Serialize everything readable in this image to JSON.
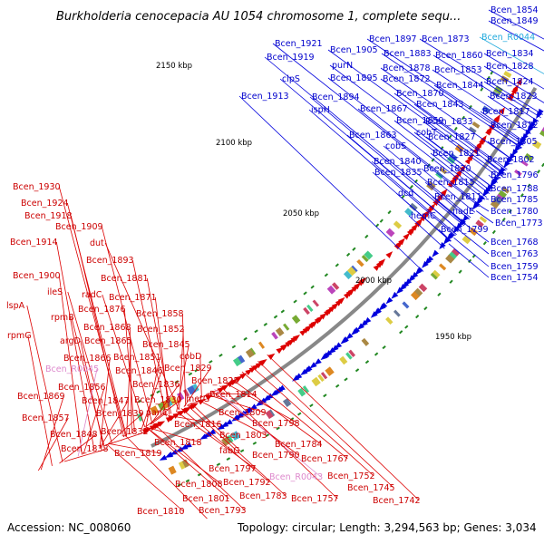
{
  "title": "Burkholderia cenocepacia AU 1054 chromosome 1, complete sequ...",
  "footer": {
    "accession": "Accession: NC_008060",
    "topology": "Topology: circular; Length: 3,294,563 bp; Genes: 3,034"
  },
  "colors": {
    "forward": "#0000dd",
    "reverse": "#dd0000",
    "rna": "#22aadd",
    "pseudo": "#dd88cc",
    "backbone": "#888888",
    "dot": "#228822"
  },
  "ticks": [
    {
      "label": "2150 kbp"
    },
    {
      "label": "2100 kbp"
    },
    {
      "label": "2050 kbp"
    },
    {
      "label": "2000 kbp"
    },
    {
      "label": "1950 kbp"
    }
  ],
  "blue_labels": [
    {
      "text": "Bcen_1854",
      "type": "cds"
    },
    {
      "text": "Bcen_1849",
      "type": "cds"
    },
    {
      "text": "Bcen_R0044",
      "type": "rna"
    },
    {
      "text": "Bcen_1897",
      "type": "cds"
    },
    {
      "text": "Bcen_1873",
      "type": "cds"
    },
    {
      "text": "Bcen_1921",
      "type": "cds"
    },
    {
      "text": "Bcen_1905",
      "type": "cds"
    },
    {
      "text": "Bcen_1883",
      "type": "cds"
    },
    {
      "text": "Bcen_1860",
      "type": "cds"
    },
    {
      "text": "Bcen_1834",
      "type": "cds"
    },
    {
      "text": "Bcen_1919",
      "type": "cds"
    },
    {
      "text": "purN",
      "type": "cds"
    },
    {
      "text": "Bcen_1878",
      "type": "cds"
    },
    {
      "text": "Bcen_1853",
      "type": "cds"
    },
    {
      "text": "Bcen_1828",
      "type": "cds"
    },
    {
      "text": "clpS",
      "type": "cds"
    },
    {
      "text": "Bcen_1895",
      "type": "cds"
    },
    {
      "text": "Bcen_1872",
      "type": "cds"
    },
    {
      "text": "Bcen_1844",
      "type": "cds"
    },
    {
      "text": "Bcen_1824",
      "type": "cds"
    },
    {
      "text": "Bcen_1870",
      "type": "cds"
    },
    {
      "text": "Bcen_1913",
      "type": "cds"
    },
    {
      "text": "Bcen_1894",
      "type": "cds"
    },
    {
      "text": "Bcen_1843",
      "type": "cds"
    },
    {
      "text": "Bcen_1823",
      "type": "cds"
    },
    {
      "text": "ispH",
      "type": "cds"
    },
    {
      "text": "Bcen_1867",
      "type": "cds"
    },
    {
      "text": "Bcen_1817",
      "type": "cds"
    },
    {
      "text": "Bcen_1833",
      "type": "cds"
    },
    {
      "text": "Bcen_1859",
      "type": "cds"
    },
    {
      "text": "cobT",
      "type": "cds"
    },
    {
      "text": "Bcen_1812",
      "type": "cds"
    },
    {
      "text": "Bcen_1863",
      "type": "cds"
    },
    {
      "text": "Bcen_1827",
      "type": "cds"
    },
    {
      "text": "Bcen_1805",
      "type": "cds"
    },
    {
      "text": "cobS",
      "type": "cds"
    },
    {
      "text": "Bcen_1821",
      "type": "cds"
    },
    {
      "text": "Bcen_1840",
      "type": "cds"
    },
    {
      "text": "Bcen_1802",
      "type": "cds"
    },
    {
      "text": "Bcen_1820",
      "type": "cds"
    },
    {
      "text": "Bcen_1835",
      "type": "cds"
    },
    {
      "text": "Bcen_1796",
      "type": "cds"
    },
    {
      "text": "Bcen_1815",
      "type": "cds"
    },
    {
      "text": "Bcen_1788",
      "type": "cds"
    },
    {
      "text": "dcd",
      "type": "cds"
    },
    {
      "text": "Bcen_1811",
      "type": "cds"
    },
    {
      "text": "Bcen_1785",
      "type": "cds"
    },
    {
      "text": "nadE",
      "type": "cds"
    },
    {
      "text": "Bcen_1780",
      "type": "cds"
    },
    {
      "text": "hemC",
      "type": "cds"
    },
    {
      "text": "Bcen_1773",
      "type": "cds"
    },
    {
      "text": "Bcen_1799",
      "type": "cds"
    },
    {
      "text": "Bcen_1768",
      "type": "cds"
    },
    {
      "text": "Bcen_1763",
      "type": "cds"
    },
    {
      "text": "Bcen_1759",
      "type": "cds"
    },
    {
      "text": "Bcen_1754",
      "type": "cds"
    }
  ],
  "red_labels": [
    {
      "text": "Bcen_1930",
      "type": "cds"
    },
    {
      "text": "Bcen_1924",
      "type": "cds"
    },
    {
      "text": "Bcen_1918",
      "type": "cds"
    },
    {
      "text": "Bcen_1909",
      "type": "cds"
    },
    {
      "text": "Bcen_1914",
      "type": "cds"
    },
    {
      "text": "dut",
      "type": "cds"
    },
    {
      "text": "Bcen_1893",
      "type": "cds"
    },
    {
      "text": "Bcen_1900",
      "type": "cds"
    },
    {
      "text": "Bcen_1881",
      "type": "cds"
    },
    {
      "text": "ileS",
      "type": "cds"
    },
    {
      "text": "radC",
      "type": "cds"
    },
    {
      "text": "Bcen_1871",
      "type": "cds"
    },
    {
      "text": "lspA",
      "type": "cds"
    },
    {
      "text": "Bcen_1876",
      "type": "cds"
    },
    {
      "text": "Bcen_1858",
      "type": "cds"
    },
    {
      "text": "rpmB",
      "type": "cds"
    },
    {
      "text": "Bcen_1868",
      "type": "cds"
    },
    {
      "text": "Bcen_1852",
      "type": "cds"
    },
    {
      "text": "rpmG",
      "type": "cds"
    },
    {
      "text": "argD",
      "type": "cds"
    },
    {
      "text": "Bcen_1865",
      "type": "cds"
    },
    {
      "text": "Bcen_1845",
      "type": "cds"
    },
    {
      "text": "Bcen_1866",
      "type": "cds"
    },
    {
      "text": "Bcen_1851",
      "type": "cds"
    },
    {
      "text": "cobD",
      "type": "cds"
    },
    {
      "text": "Bcen_R0045",
      "type": "pseudo"
    },
    {
      "text": "Bcen_1846",
      "type": "cds"
    },
    {
      "text": "Bcen_1829",
      "type": "cds"
    },
    {
      "text": "Bcen_1856",
      "type": "cds"
    },
    {
      "text": "Bcen_1836",
      "type": "cds"
    },
    {
      "text": "Bcen_1825",
      "type": "cds"
    },
    {
      "text": "Bcen_1869",
      "type": "cds"
    },
    {
      "text": "Bcen_1847",
      "type": "cds"
    },
    {
      "text": "Bcen_1830",
      "type": "cds"
    },
    {
      "text": "metG",
      "type": "cds"
    },
    {
      "text": "Bcen_1814",
      "type": "cds"
    },
    {
      "text": "Bcen_1839",
      "type": "cds"
    },
    {
      "text": "panC",
      "type": "cds"
    },
    {
      "text": "Bcen_1857",
      "type": "cds"
    },
    {
      "text": "Bcen_1816",
      "type": "cds"
    },
    {
      "text": "Bcen_1809",
      "type": "cds"
    },
    {
      "text": "Bcen_1832",
      "type": "cds"
    },
    {
      "text": "Bcen_1798",
      "type": "cds"
    },
    {
      "text": "Bcen_1848",
      "type": "cds"
    },
    {
      "text": "Bcen_1803",
      "type": "cds"
    },
    {
      "text": "Bcen_1818",
      "type": "cds"
    },
    {
      "text": "Bcen_1784",
      "type": "cds"
    },
    {
      "text": "Bcen_1838",
      "type": "cds"
    },
    {
      "text": "fabG",
      "type": "cds"
    },
    {
      "text": "Bcen_1790",
      "type": "cds"
    },
    {
      "text": "Bcen_1819",
      "type": "cds"
    },
    {
      "text": "Bcen_1767",
      "type": "cds"
    },
    {
      "text": "Bcen_1797",
      "type": "cds"
    },
    {
      "text": "Bcen_R0043",
      "type": "pseudo"
    },
    {
      "text": "Bcen_1752",
      "type": "cds"
    },
    {
      "text": "Bcen_1808",
      "type": "cds"
    },
    {
      "text": "Bcen_1792",
      "type": "cds"
    },
    {
      "text": "Bcen_1745",
      "type": "cds"
    },
    {
      "text": "Bcen_1801",
      "type": "cds"
    },
    {
      "text": "Bcen_1783",
      "type": "cds"
    },
    {
      "text": "Bcen_1757",
      "type": "cds"
    },
    {
      "text": "Bcen_1742",
      "type": "cds"
    },
    {
      "text": "Bcen_1810",
      "type": "cds"
    },
    {
      "text": "Bcen_1793",
      "type": "cds"
    },
    {
      "text": "Bcen_1804",
      "type": "cds"
    }
  ]
}
